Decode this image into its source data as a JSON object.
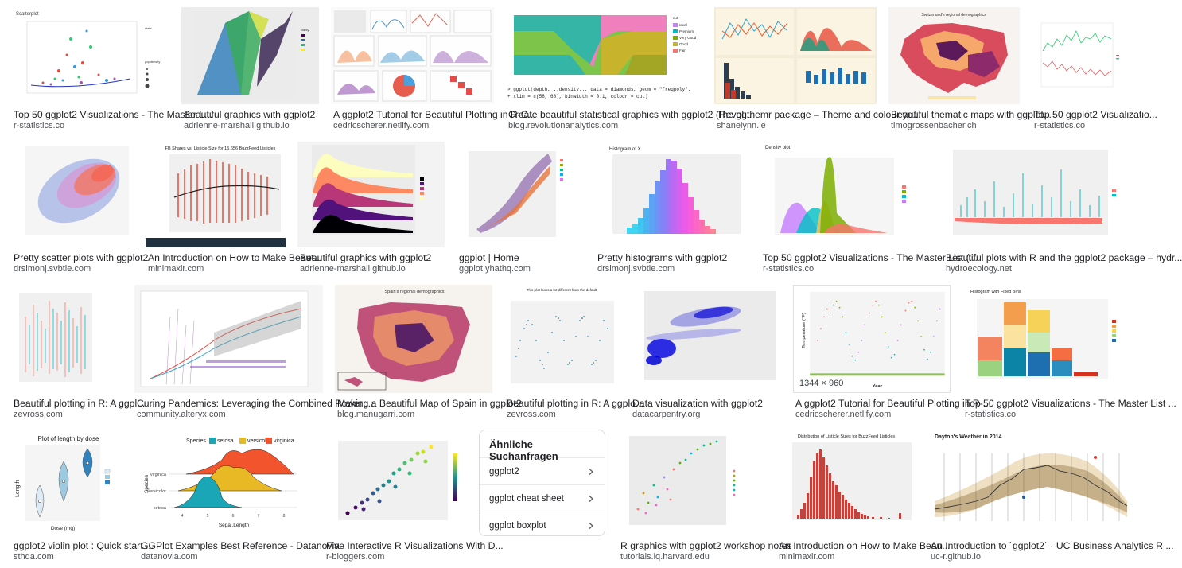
{
  "results": [
    {
      "title": "Top 50 ggplot2 Visualizations - The Master L...",
      "source": "r-statistics.co"
    },
    {
      "title": "Beautiful graphics with ggplot2",
      "source": "adrienne-marshall.github.io"
    },
    {
      "title": "A ggplot2 Tutorial for Beautiful Plotting in R-C...",
      "source": "cedricscherer.netlify.com"
    },
    {
      "title": "Create beautiful statistical graphics with ggplot2 (Revol...",
      "source": "blog.revolutionanalytics.com"
    },
    {
      "title": "The ggthemr package – Theme and colour yo...",
      "source": "shanelynn.ie"
    },
    {
      "title": "Beautiful thematic maps with ggplot...",
      "source": "timogrossenbacher.ch"
    },
    {
      "title": "Top 50 ggplot2 Visualizatio...",
      "source": "r-statistics.co"
    },
    {
      "title": "Pretty scatter plots with ggplot2",
      "source": "drsimonj.svbtle.com"
    },
    {
      "title": "An Introduction on How to Make Beaut...",
      "source": "minimaxir.com"
    },
    {
      "title": "Beautiful graphics with ggplot2",
      "source": "adrienne-marshall.github.io"
    },
    {
      "title": "ggplot | Home",
      "source": "ggplot.yhathq.com"
    },
    {
      "title": "Pretty histograms with ggplot2",
      "source": "drsimonj.svbtle.com"
    },
    {
      "title": "Top 50 ggplot2 Visualizations - The Master List (...",
      "source": "r-statistics.co"
    },
    {
      "title": "Beautiful plots with R and the ggplot2 package – hydr...",
      "source": "hydroecology.net"
    },
    {
      "title": "Beautiful plotting in R: A ggpl...",
      "source": "zevross.com"
    },
    {
      "title": "Curing Pandemics: Leveraging the Combined Power ...",
      "source": "community.alteryx.com"
    },
    {
      "title": "Making a Beautiful Map of Spain in ggplot2",
      "source": "blog.manugarri.com"
    },
    {
      "title": "Beautiful plotting in R: A ggplo...",
      "source": "zevross.com"
    },
    {
      "title": "Data visualization with ggplot2",
      "source": "datacarpentry.org"
    },
    {
      "title": "A ggplot2 Tutorial for Beautiful Plotting in R-...",
      "source": "cedricscherer.netlify.com",
      "dims": "1344 × 960"
    },
    {
      "title": "Top 50 ggplot2 Visualizations - The Master List ...",
      "source": "r-statistics.co"
    },
    {
      "title": "ggplot2 violin plot : Quick start ...",
      "source": "sthda.com"
    },
    {
      "title": "GGPlot Examples Best Reference - Datanovia",
      "source": "datanovia.com"
    },
    {
      "title": "Five Interactive R Visualizations With D...",
      "source": "r-bloggers.com"
    },
    {
      "title": "R graphics with ggplot2 workshop notes",
      "source": "tutorials.iq.harvard.edu"
    },
    {
      "title": "An Introduction on How to Make Beau...",
      "source": "minimaxir.com"
    },
    {
      "title": "An Introduction to `ggplot2` · UC Business Analytics R ...",
      "source": "uc-r.github.io"
    }
  ],
  "thumb_text": {
    "t0": "Scatterplot",
    "t3": "> ggplot(depth, ..density.., data = diamonds, geom = \"freqpoly\",",
    "t5": "Switzerland's regional demographics",
    "t8": "FB Shares vs. Listicle Size for 15,656 BuzzFeed Listicles",
    "t11": "Histogram of X",
    "t12": "Density plot",
    "t16": "Spain's regional demographics",
    "t17": "This plot looks a lot different from the default",
    "t20": "Histogram with Fixed Bins",
    "t21": "Plot of length  by dose",
    "t21_y": "Length",
    "t21_x": "Dose (mg)",
    "t22_legend": [
      "Species",
      "setosa",
      "versicolor",
      "virginica"
    ],
    "t22_x": "Sepal.Length",
    "t22_y": "Species",
    "t22_cats": [
      "virginica",
      "versicolor",
      "setosa"
    ],
    "t25": "Distribution of Listicle Sizes for BuzzFeed Listicles",
    "t26": "Dayton's Weather in 2014"
  },
  "related": {
    "title": "Ähnliche Suchanfragen",
    "items": [
      "ggplot2",
      "ggplot cheat sheet",
      "ggplot boxplot"
    ]
  },
  "colors": {
    "accent_orange": "#f2542d",
    "accent_teal": "#1aa6b7",
    "accent_yellow": "#e9b825"
  }
}
